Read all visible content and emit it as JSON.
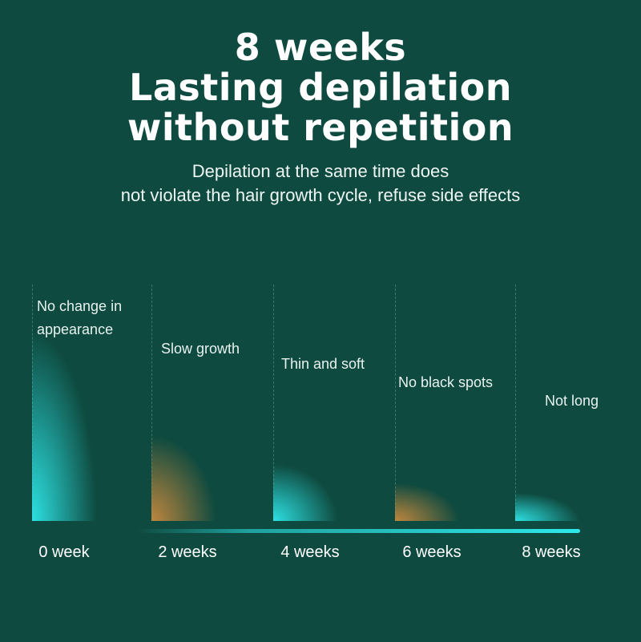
{
  "headline": {
    "line1": "8 weeks",
    "line2": "Lasting depilation",
    "line3": "without repetition"
  },
  "subtitle": {
    "line1": "Depilation at the same time does",
    "line2": "not violate the hair growth cycle, refuse side effects"
  },
  "colors": {
    "background": "#0e4a3f",
    "cyan": "#2ee8ea",
    "amber": "#c8893e"
  },
  "stages": [
    {
      "week": "0 week",
      "label_lines": [
        "No change in",
        "appearance"
      ],
      "tone": "cyan",
      "growth_level": 1.0
    },
    {
      "week": "2 weeks",
      "label_lines": [
        "Slow growth"
      ],
      "tone": "amber",
      "growth_level": 0.45
    },
    {
      "week": "4 weeks",
      "label_lines": [
        "Thin and soft"
      ],
      "tone": "cyan",
      "growth_level": 0.3
    },
    {
      "week": "6 weeks",
      "label_lines": [
        "No black spots"
      ],
      "tone": "amber",
      "growth_level": 0.2
    },
    {
      "week": "8 weeks",
      "label_lines": [
        "Not long"
      ],
      "tone": "cyan",
      "growth_level": 0.15
    }
  ]
}
